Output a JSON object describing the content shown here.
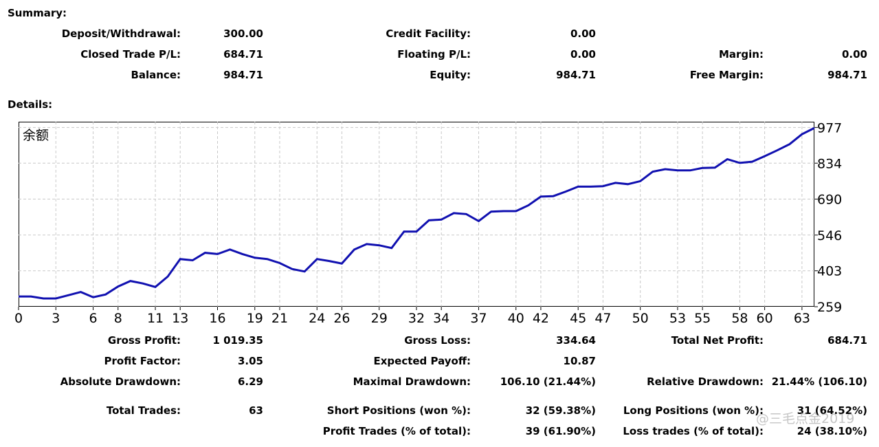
{
  "summary": {
    "title": "Summary:",
    "deposit_label": "Deposit/Withdrawal:",
    "deposit_value": "300.00",
    "credit_label": "Credit Facility:",
    "credit_value": "0.00",
    "closed_label": "Closed Trade P/L:",
    "closed_value": "684.71",
    "floating_label": "Floating P/L:",
    "floating_value": "0.00",
    "margin_label": "Margin:",
    "margin_value": "0.00",
    "balance_label": "Balance:",
    "balance_value": "984.71",
    "equity_label": "Equity:",
    "equity_value": "984.71",
    "free_margin_label": "Free Margin:",
    "free_margin_value": "984.71"
  },
  "details": {
    "title": "Details:",
    "gross_profit_label": "Gross Profit:",
    "gross_profit_value": "1 019.35",
    "gross_loss_label": "Gross Loss:",
    "gross_loss_value": "334.64",
    "net_profit_label": "Total Net Profit:",
    "net_profit_value": "684.71",
    "profit_factor_label": "Profit Factor:",
    "profit_factor_value": "3.05",
    "expected_payoff_label": "Expected Payoff:",
    "expected_payoff_value": "10.87",
    "abs_dd_label": "Absolute Drawdown:",
    "abs_dd_value": "6.29",
    "max_dd_label": "Maximal Drawdown:",
    "max_dd_value": "106.10 (21.44%)",
    "rel_dd_label": "Relative Drawdown:",
    "rel_dd_value": "21.44% (106.10)",
    "total_trades_label": "Total Trades:",
    "total_trades_value": "63",
    "short_label": "Short Positions (won %):",
    "short_value": "32 (59.38%)",
    "long_label": "Long Positions (won %):",
    "long_value": "31 (64.52%)",
    "profit_trades_label": "Profit Trades (% of total):",
    "profit_trades_value": "39 (61.90%)",
    "loss_trades_label": "Loss trades (% of total):",
    "loss_trades_value": "24 (38.10%)"
  },
  "watermark": "@三毛点金2019",
  "chart_data": {
    "type": "line",
    "title": "余额",
    "xlabel": "",
    "ylabel": "",
    "x_ticks": [
      0,
      3,
      6,
      8,
      11,
      13,
      16,
      19,
      21,
      24,
      26,
      29,
      32,
      34,
      37,
      40,
      42,
      45,
      47,
      50,
      53,
      55,
      58,
      60,
      63
    ],
    "y_ticks": [
      259,
      403,
      546,
      690,
      834,
      977
    ],
    "xlim": [
      0,
      64
    ],
    "ylim": [
      259,
      1000
    ],
    "grid": true,
    "line_color": "#1010b0",
    "series": [
      {
        "name": "",
        "x": [
          0,
          1,
          2,
          3,
          4,
          5,
          6,
          7,
          8,
          9,
          10,
          11,
          12,
          13,
          14,
          15,
          16,
          17,
          18,
          19,
          20,
          21,
          22,
          23,
          24,
          25,
          26,
          27,
          28,
          29,
          30,
          31,
          32,
          33,
          34,
          35,
          36,
          37,
          38,
          39,
          40,
          41,
          42,
          43,
          44,
          45,
          46,
          47,
          48,
          49,
          50,
          51,
          52,
          53,
          54,
          55,
          56,
          57,
          58,
          59,
          60,
          61,
          62,
          63,
          64
        ],
        "values": [
          300,
          300,
          292,
          292,
          305,
          318,
          297,
          308,
          340,
          362,
          352,
          338,
          380,
          450,
          445,
          475,
          470,
          488,
          470,
          455,
          450,
          434,
          410,
          400,
          450,
          442,
          432,
          488,
          510,
          505,
          494,
          560,
          560,
          605,
          608,
          634,
          630,
          602,
          640,
          642,
          642,
          665,
          700,
          702,
          720,
          740,
          740,
          742,
          755,
          750,
          762,
          800,
          810,
          805,
          805,
          815,
          816,
          850,
          835,
          840,
          862,
          885,
          910,
          950,
          975
        ]
      }
    ]
  }
}
